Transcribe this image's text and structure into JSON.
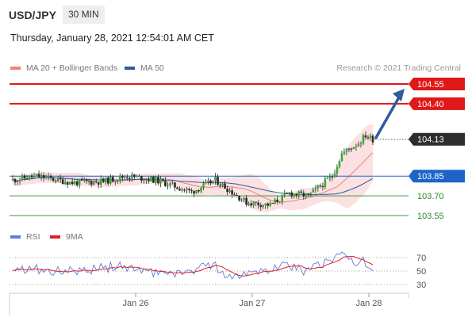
{
  "header": {
    "symbol": "USD/JPY",
    "timeframe": "30 MIN",
    "timestamp": "Thursday, January 28, 2021 12:54:01 AM CET"
  },
  "legend": {
    "ma20": {
      "label": "MA 20 + Bollinger Bands",
      "color": "#f08080"
    },
    "ma50": {
      "label": "MA 50",
      "color": "#2e5c9e"
    },
    "copyright": "Research © 2021 Trading Central"
  },
  "rsi_legend": {
    "rsi": {
      "label": "RSI",
      "color": "#5b7fd6"
    },
    "ma9": {
      "label": "9MA",
      "color": "#e02020"
    }
  },
  "chart_data": [
    {
      "type": "candlestick",
      "x_ticks": [
        "Jan 26",
        "Jan 27",
        "Jan 28"
      ],
      "ylim": [
        103.4,
        104.65
      ],
      "current_price": {
        "value": 104.13,
        "label": "104.13"
      },
      "levels": [
        {
          "value": 104.55,
          "label": "104.55",
          "role": "resistance",
          "color": "#e01818"
        },
        {
          "value": 104.4,
          "label": "104.40",
          "role": "resistance",
          "color": "#e01818"
        },
        {
          "value": 103.85,
          "label": "103.85",
          "role": "pivot",
          "color": "#1e64c8"
        },
        {
          "value": 103.7,
          "label": "103.70",
          "role": "support",
          "color": "#3a9a3a"
        },
        {
          "value": 103.55,
          "label": "103.55",
          "role": "support",
          "color": "#3a9a3a"
        }
      ],
      "forecast_arrow": {
        "from": 104.13,
        "to": 104.55,
        "direction": "up",
        "color": "#2e5c9e"
      }
    },
    {
      "type": "line",
      "name": "RSI",
      "ylim": [
        20,
        80
      ],
      "y_ticks": [
        "70",
        "50",
        "30"
      ],
      "guide_levels": [
        70,
        50,
        30
      ]
    }
  ]
}
